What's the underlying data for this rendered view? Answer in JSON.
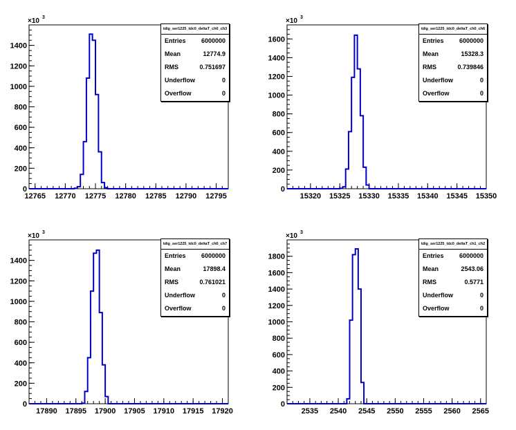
{
  "chart_data": [
    {
      "type": "histogram",
      "name": "tdig_ser1225_tdc0_deltaT_ch0_ch3",
      "xlim": [
        12764,
        12797
      ],
      "ylim": [
        0,
        1600
      ],
      "y_exponent": "10",
      "y_exponent_power": "3",
      "x_ticks": [
        12765,
        12770,
        12775,
        12780,
        12785,
        12790,
        12795
      ],
      "x_tick_labels": [
        "12765",
        "12770",
        "12775",
        "12780",
        "12785",
        "12790",
        "12795"
      ],
      "y_ticks": [
        0,
        200,
        400,
        600,
        800,
        1000,
        1200,
        1400
      ],
      "y_tick_labels": [
        "0",
        "200",
        "400",
        "600",
        "800",
        "1000",
        "1200",
        "1400"
      ],
      "bin_width": 0.5,
      "bins_x_start": [
        12771.5,
        12772,
        12772.5,
        12773,
        12773.5,
        12774,
        12774.5,
        12775,
        12775.5,
        12776,
        12776.5,
        12777
      ],
      "bin_values": [
        5,
        20,
        140,
        460,
        1080,
        1510,
        1450,
        920,
        360,
        60,
        10,
        0
      ],
      "stats": {
        "title": "tdig_ser1225_tdc0_deltaT_ch0_ch3",
        "rows": [
          {
            "label": "Entries",
            "value": "6000000"
          },
          {
            "label": "Mean",
            "value": "12774.9"
          },
          {
            "label": "RMS",
            "value": "0.751697"
          },
          {
            "label": "Underflow",
            "value": "0"
          },
          {
            "label": "Overflow",
            "value": "0"
          }
        ]
      }
    },
    {
      "type": "histogram",
      "name": "tdig_ser1225_tdc0_deltaT_ch0_ch6",
      "xlim": [
        15316,
        15350
      ],
      "ylim": [
        0,
        1750
      ],
      "y_exponent": "10",
      "y_exponent_power": "3",
      "x_ticks": [
        15320,
        15325,
        15330,
        15335,
        15340,
        15345,
        15350
      ],
      "x_tick_labels": [
        "15320",
        "15325",
        "15330",
        "15335",
        "15340",
        "15345",
        "15350"
      ],
      "y_ticks": [
        0,
        200,
        400,
        600,
        800,
        1000,
        1200,
        1400,
        1600
      ],
      "y_tick_labels": [
        "0",
        "200",
        "400",
        "600",
        "800",
        "1000",
        "1200",
        "1400",
        "1600"
      ],
      "bin_width": 0.5,
      "bins_x_start": [
        15325,
        15325.5,
        15326,
        15326.5,
        15327,
        15327.5,
        15328,
        15328.5,
        15329,
        15329.5,
        15330
      ],
      "bin_values": [
        5,
        20,
        210,
        610,
        1190,
        1640,
        1280,
        780,
        230,
        40,
        0
      ],
      "stats": {
        "title": "tdig_ser1225_tdc0_deltaT_ch0_ch6",
        "rows": [
          {
            "label": "Entries",
            "value": "6000000"
          },
          {
            "label": "Mean",
            "value": "15328.3"
          },
          {
            "label": "RMS",
            "value": "0.739846"
          },
          {
            "label": "Underflow",
            "value": "0"
          },
          {
            "label": "Overflow",
            "value": "0"
          }
        ]
      }
    },
    {
      "type": "histogram",
      "name": "tdig_ser1225_tdc0_deltaT_ch0_ch7",
      "xlim": [
        17887,
        17921
      ],
      "ylim": [
        0,
        1600
      ],
      "y_exponent": "10",
      "y_exponent_power": "3",
      "x_ticks": [
        17890,
        17895,
        17900,
        17905,
        17910,
        17915,
        17920
      ],
      "x_tick_labels": [
        "17890",
        "17895",
        "17900",
        "17905",
        "17910",
        "17915",
        "17920"
      ],
      "y_ticks": [
        0,
        200,
        400,
        600,
        800,
        1000,
        1200,
        1400
      ],
      "y_tick_labels": [
        "0",
        "200",
        "400",
        "600",
        "800",
        "1000",
        "1200",
        "1400"
      ],
      "bin_width": 0.5,
      "bins_x_start": [
        17896,
        17896.5,
        17897,
        17897.5,
        17898,
        17898.5,
        17899,
        17899.5,
        17900,
        17900.5
      ],
      "bin_values": [
        5,
        120,
        450,
        1100,
        1470,
        1500,
        890,
        380,
        70,
        0
      ],
      "stats": {
        "title": "tdig_ser1225_tdc0_deltaT_ch0_ch7",
        "rows": [
          {
            "label": "Entries",
            "value": "6000000"
          },
          {
            "label": "Mean",
            "value": "17898.4"
          },
          {
            "label": "RMS",
            "value": "0.761021"
          },
          {
            "label": "Underflow",
            "value": "0"
          },
          {
            "label": "Overflow",
            "value": "0"
          }
        ]
      }
    },
    {
      "type": "histogram",
      "name": "tdig_ser1225_tdc0_deltaT_ch1_ch2",
      "xlim": [
        2531,
        2566
      ],
      "ylim": [
        0,
        2000
      ],
      "y_exponent": "10",
      "y_exponent_power": "3",
      "x_ticks": [
        2535,
        2540,
        2545,
        2550,
        2555,
        2560,
        2565
      ],
      "x_tick_labels": [
        "2535",
        "2540",
        "2545",
        "2550",
        "2555",
        "2560",
        "2565"
      ],
      "y_ticks": [
        0,
        200,
        400,
        600,
        800,
        1000,
        1200,
        1400,
        1600,
        1800
      ],
      "y_tick_labels": [
        "0",
        "200",
        "400",
        "600",
        "800",
        "1000",
        "1200",
        "1400",
        "1600",
        "1800"
      ],
      "bin_width": 0.5,
      "bins_x_start": [
        2541.5,
        2542,
        2542.5,
        2543,
        2543.5,
        2544,
        2544.5
      ],
      "bin_values": [
        60,
        1020,
        1820,
        1890,
        1400,
        260,
        0
      ],
      "stats": {
        "title": "tdig_ser1225_tdc0_deltaT_ch1_ch2",
        "rows": [
          {
            "label": "Entries",
            "value": "6000000"
          },
          {
            "label": "Mean",
            "value": "2543.06"
          },
          {
            "label": "RMS",
            "value": "0.5771"
          },
          {
            "label": "Underflow",
            "value": "0"
          },
          {
            "label": "Overflow",
            "value": "0"
          }
        ]
      }
    }
  ]
}
